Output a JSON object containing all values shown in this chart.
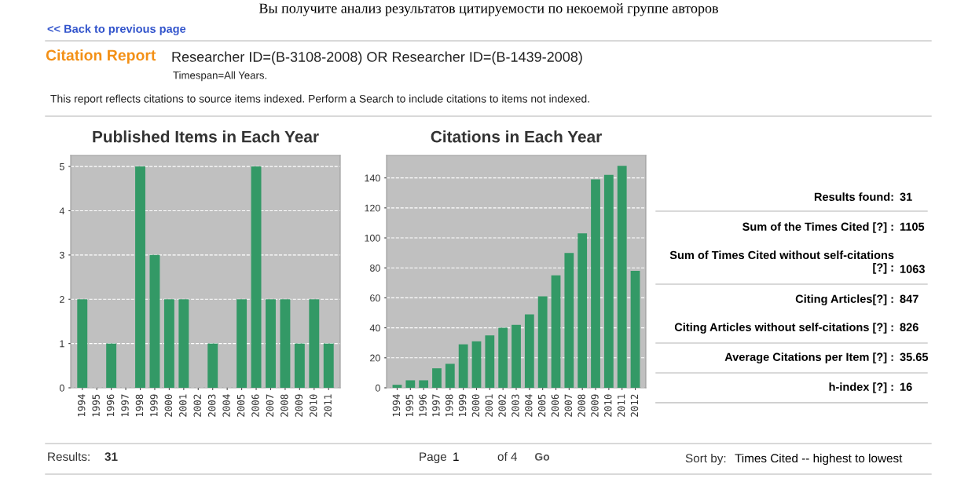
{
  "chart_data": [
    {
      "type": "bar",
      "title": "Published Items in Each Year",
      "categories": [
        "1994",
        "1995",
        "1996",
        "1997",
        "1998",
        "1999",
        "2000",
        "2001",
        "2002",
        "2003",
        "2004",
        "2005",
        "2006",
        "2007",
        "2008",
        "2009",
        "2010",
        "2011"
      ],
      "values": [
        2,
        0,
        1,
        0,
        5,
        3,
        2,
        2,
        0,
        1,
        0,
        2,
        5,
        2,
        2,
        1,
        2,
        1
      ],
      "color": "#339966",
      "ylim": [
        0,
        5.25
      ],
      "yticks": [
        0,
        1,
        2,
        3,
        4,
        5
      ],
      "grid": "y",
      "annotations": [
        "Вы получите анализ результатов цитируемости по некоемой группе авторов",
        "<< Back to previous page",
        "Citation Report",
        "Researcher ID=(B-3108-2008) OR Researcher ID=(B-1439-2008)",
        "Timespan=All Years.",
        "This report reflects citations to source items indexed. Perform a Search to include citations to items not indexed.",
        "Results:",
        "31",
        "Page",
        "1",
        "of 4",
        "Go",
        "Sort by:",
        "Times Cited -- highest to lowest"
      ]
    },
    {
      "type": "bar",
      "title": "Citations in Each Year",
      "categories": [
        "1994",
        "1995",
        "1996",
        "1997",
        "1998",
        "1999",
        "2000",
        "2001",
        "2002",
        "2003",
        "2004",
        "2005",
        "2006",
        "2007",
        "2008",
        "2009",
        "2010",
        "2011",
        "2012"
      ],
      "values": [
        2,
        5,
        5,
        13,
        16,
        29,
        31,
        35,
        40,
        42,
        49,
        61,
        75,
        90,
        103,
        139,
        142,
        148,
        78
      ],
      "color": "#339966",
      "ylim": [
        0,
        155
      ],
      "yticks": [
        0,
        20,
        40,
        60,
        80,
        100,
        120,
        140
      ],
      "grid": "y"
    },
    {
      "type": "other",
      "annotations": [
        "Results found:",
        "31",
        "Sum of the Times Cited [?] :",
        "1105",
        "Sum of Times Cited without self-citations\n[?] :",
        "1063",
        "Citing Articles[?] :",
        "847",
        "Citing Articles without self-citations [?] :",
        "826",
        "Average Citations per Item [?] :",
        "35.65",
        "h-index [?] :",
        "16"
      ]
    }
  ]
}
